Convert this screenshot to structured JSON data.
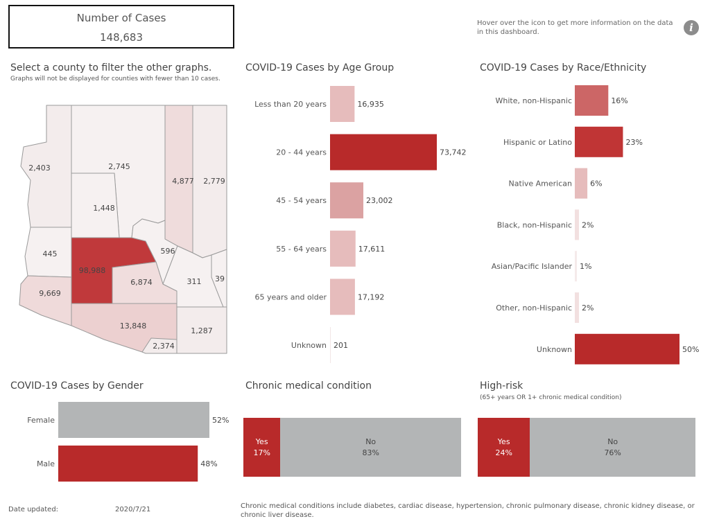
{
  "kpi": {
    "label": "Number of Cases",
    "value": "148,683"
  },
  "info": {
    "text": "Hover over the icon to get more information on the data in this dashboard.",
    "icon": "info-icon"
  },
  "map": {
    "title": "Select a county to filter the other graphs.",
    "subtitle": "Graphs will not be displayed for counties with fewer than 10 cases.",
    "counties": [
      {
        "value": "2,403",
        "selected": false
      },
      {
        "value": "2,745",
        "selected": false
      },
      {
        "value": "4,877",
        "selected": false
      },
      {
        "value": "2,779",
        "selected": false
      },
      {
        "value": "1,448",
        "selected": false
      },
      {
        "value": "445",
        "selected": false
      },
      {
        "value": "98,988",
        "selected": true
      },
      {
        "value": "596",
        "selected": false
      },
      {
        "value": "6,874",
        "selected": false
      },
      {
        "value": "311",
        "selected": false
      },
      {
        "value": "39",
        "selected": false
      },
      {
        "value": "9,669",
        "selected": false
      },
      {
        "value": "13,848",
        "selected": false
      },
      {
        "value": "1,287",
        "selected": false
      },
      {
        "value": "2,374",
        "selected": false
      }
    ]
  },
  "chart_data": [
    {
      "type": "bar",
      "orientation": "horizontal",
      "title": "COVID-19 Cases by Age Group",
      "categories": [
        "Less than 20 years",
        "20 - 44 years",
        "45 - 54 years",
        "55 - 64 years",
        "65 years and older",
        "Unknown"
      ],
      "values": [
        16935,
        73742,
        23002,
        17611,
        17192,
        201
      ],
      "labels": [
        "16,935",
        "73,742",
        "23,002",
        "17,611",
        "17,192",
        "201"
      ],
      "xlim": [
        0,
        73742
      ],
      "colors": [
        "#e6bcbc",
        "#b82a2a",
        "#dba2a2",
        "#e6bcbc",
        "#e6bcbc",
        "#f2e6e6"
      ],
      "grid": false
    },
    {
      "type": "bar",
      "orientation": "horizontal",
      "title": "COVID-19 Cases by Race/Ethnicity",
      "categories": [
        "White, non-Hispanic",
        "Hispanic or Latino",
        "Native American",
        "Black, non-Hispanic",
        "Asian/Pacific Islander",
        "Other, non-Hispanic",
        "Unknown"
      ],
      "values": [
        16,
        23,
        6,
        2,
        1,
        2,
        50
      ],
      "labels": [
        "16%",
        "23%",
        "6%",
        "2%",
        "1%",
        "2%",
        "50%"
      ],
      "xlim": [
        0,
        50
      ],
      "colors": [
        "#cc6666",
        "#c03535",
        "#e6bcbc",
        "#f2e0e0",
        "#f5eaea",
        "#f2e0e0",
        "#b82a2a"
      ],
      "grid": false
    },
    {
      "type": "bar",
      "orientation": "horizontal",
      "title": "COVID-19 Cases by Gender",
      "categories": [
        "Female",
        "Male"
      ],
      "values": [
        52,
        48
      ],
      "labels": [
        "52%",
        "48%"
      ],
      "xlim": [
        0,
        52
      ],
      "colors": [
        "#b3b5b6",
        "#b82a2a"
      ],
      "grid": false
    },
    {
      "type": "bar",
      "stacked": true,
      "title": "Chronic medical condition",
      "categories": [
        "Yes",
        "No"
      ],
      "values": [
        17,
        83
      ],
      "labels": [
        "17%",
        "83%"
      ],
      "colors": [
        "#b82a2a",
        "#b3b5b6"
      ]
    },
    {
      "type": "bar",
      "stacked": true,
      "title": "High-risk",
      "subtitle": "(65+ years OR 1+ chronic medical condition)",
      "categories": [
        "Yes",
        "No"
      ],
      "values": [
        24,
        76
      ],
      "labels": [
        "24%",
        "76%"
      ],
      "colors": [
        "#b82a2a",
        "#b3b5b6"
      ]
    }
  ],
  "footer": {
    "date_label": "Date updated:",
    "date_value": "2020/7/21",
    "note": "Chronic medical conditions include diabetes, cardiac disease, hypertension, chronic pulmonary disease, chronic kidney disease, or chronic liver disease."
  }
}
